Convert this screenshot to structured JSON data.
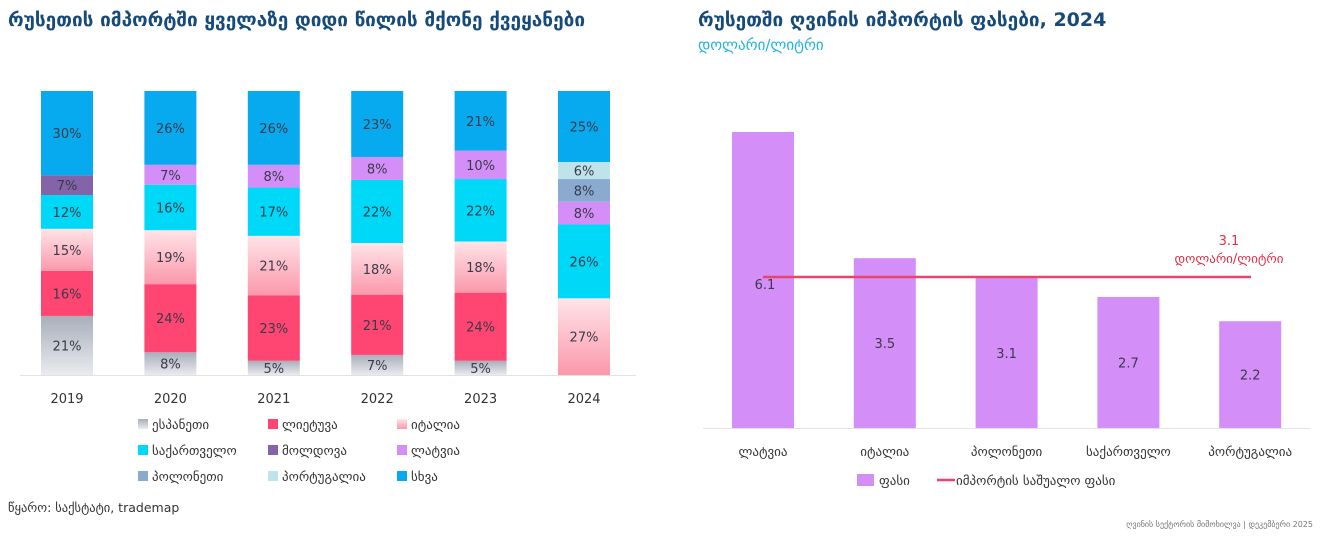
{
  "left_chart": {
    "title": "რუსეთის იმპორტში ყველაზე დიდი წილის მქონე ქვეყანები",
    "source": "წყარო: საქსტატი, trademap"
  },
  "right_chart": {
    "title": "რუსეთში ღვინის იმპორტის ფასები, 2024",
    "subtitle": "დოლარი/ლიტრი",
    "average_annotation_value": "3.1",
    "average_annotation_unit": "დოლარი/ლიტრი"
  },
  "footer": "ღვინის სექტორის მიმოხილვა | დეკემბერი 2025",
  "colors": {
    "spain": "#b9bec8",
    "lithuania": "#ff4672",
    "italy": "#fbb8c4",
    "georgia": "#00d8f8",
    "moldova": "#8464a8",
    "latvia": "#d48ef8",
    "poland": "#8aaad0",
    "portugal": "#bfe3ea",
    "other": "#08aaef",
    "price_bar": "#d48ef8",
    "avg_line": "#e8446e",
    "title": "#164a7a",
    "subtitle": "#1fb3e0"
  },
  "chart_data": [
    {
      "type": "bar",
      "stacked": true,
      "title": "რუსეთის იმპორტში ყველაზე დიდი წილის მქონე ქვეყანები",
      "categories": [
        "2019",
        "2020",
        "2021",
        "2022",
        "2023",
        "2024"
      ],
      "ylim": [
        0,
        100
      ],
      "grid": false,
      "legend_position": "bottom",
      "series": [
        {
          "key": "spain",
          "name": "ესპანეთი",
          "values": [
            21,
            8,
            5,
            7,
            5,
            0
          ]
        },
        {
          "key": "lithuania",
          "name": "ლიეტუვა",
          "values": [
            16,
            24,
            23,
            21,
            24,
            0
          ]
        },
        {
          "key": "italy",
          "name": "იტალია",
          "values": [
            15,
            19,
            21,
            18,
            18,
            27
          ]
        },
        {
          "key": "georgia",
          "name": "საქართველო",
          "values": [
            12,
            16,
            17,
            22,
            22,
            26
          ]
        },
        {
          "key": "moldova",
          "name": "მოლდოვა",
          "values": [
            7,
            0,
            0,
            0,
            0,
            0
          ]
        },
        {
          "key": "latvia",
          "name": "ლატვია",
          "values": [
            0,
            7,
            8,
            8,
            10,
            8
          ]
        },
        {
          "key": "poland",
          "name": "პოლონეთი",
          "values": [
            0,
            0,
            0,
            0,
            0,
            8
          ]
        },
        {
          "key": "portugal",
          "name": "პორტუგალია",
          "values": [
            0,
            0,
            0,
            0,
            0,
            6
          ]
        },
        {
          "key": "other",
          "name": "სხვა",
          "values": [
            30,
            26,
            26,
            23,
            21,
            25
          ]
        }
      ],
      "value_suffix": "%"
    },
    {
      "type": "bar",
      "title": "რუსეთში ღვინის იმპორტის ფასები, 2024",
      "subtitle": "დოლარი/ლიტრი",
      "categories": [
        "ლატვია",
        "იტალია",
        "პოლონეთი",
        "საქართველო",
        "პორტუგალია"
      ],
      "series": [
        {
          "name": "ფასი",
          "values": [
            6.1,
            3.5,
            3.1,
            2.7,
            2.2
          ]
        }
      ],
      "reference_line": {
        "name": "იმპორტის საშუალო ფასი",
        "value": 3.1,
        "label": "3.1 დოლარი/ლიტრი"
      },
      "ylim": [
        0,
        7
      ],
      "grid": false,
      "legend_position": "bottom",
      "legend": [
        "ფასი",
        "იმპორტის საშუალო ფასი"
      ]
    }
  ]
}
